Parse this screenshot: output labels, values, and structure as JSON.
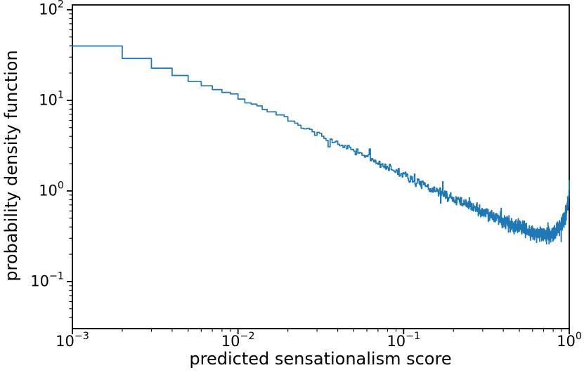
{
  "figure": {
    "background": "#ffffff",
    "text_color": "#000000"
  },
  "chart_data": {
    "type": "line",
    "subtype": "step-histogram-pdf-loglog",
    "title": "",
    "xlabel": "predicted sensationalism score",
    "ylabel": "probability density function",
    "xscale": "log",
    "yscale": "log",
    "xlim": [
      0.001,
      1.0
    ],
    "ylim": [
      0.0302,
      113
    ],
    "grid": false,
    "legend_position": "none",
    "line_color": "#1f77b4",
    "spine_color": "#000000",
    "bin_width": 0.001,
    "x_ticks": [
      {
        "value": 0.001,
        "base": "10",
        "exp": "−3"
      },
      {
        "value": 0.01,
        "base": "10",
        "exp": "−2"
      },
      {
        "value": 0.1,
        "base": "10",
        "exp": "−1"
      },
      {
        "value": 1.0,
        "base": "10",
        "exp": "0"
      }
    ],
    "y_ticks": [
      {
        "value": 100,
        "base": "10",
        "exp": "2"
      },
      {
        "value": 10,
        "base": "10",
        "exp": "1"
      },
      {
        "value": 1,
        "base": "10",
        "exp": "0"
      },
      {
        "value": 0.1,
        "base": "10",
        "exp": "−1"
      }
    ],
    "curve_anchors": [
      [
        0.001,
        40.0
      ],
      [
        0.002,
        29.0
      ],
      [
        0.003,
        22.6
      ],
      [
        0.004,
        18.8
      ],
      [
        0.005,
        16.2
      ],
      [
        0.006,
        14.5
      ],
      [
        0.007,
        13.2
      ],
      [
        0.008,
        12.2
      ],
      [
        0.009,
        11.35
      ],
      [
        0.01,
        10.55
      ],
      [
        0.012,
        9.2
      ],
      [
        0.015,
        7.6
      ],
      [
        0.02,
        5.95
      ],
      [
        0.03,
        4.2
      ],
      [
        0.05,
        2.75
      ],
      [
        0.07,
        2.05
      ],
      [
        0.1,
        1.5
      ],
      [
        0.13,
        1.16
      ],
      [
        0.17,
        0.93
      ],
      [
        0.22,
        0.76
      ],
      [
        0.28,
        0.63
      ],
      [
        0.35,
        0.53
      ],
      [
        0.45,
        0.43
      ],
      [
        0.55,
        0.37
      ],
      [
        0.65,
        0.335
      ],
      [
        0.75,
        0.33
      ],
      [
        0.82,
        0.35
      ],
      [
        0.88,
        0.4
      ],
      [
        0.93,
        0.48
      ],
      [
        0.96,
        0.58
      ],
      [
        0.98,
        0.72
      ],
      [
        0.99,
        0.85
      ],
      [
        0.995,
        1.0
      ],
      [
        0.999,
        1.25
      ],
      [
        1.0,
        1.3
      ]
    ],
    "noise": {
      "seed": 7,
      "sigma_quiet": 0.0025,
      "quiet_below_x": 0.008,
      "sigma_scale": 0.0104,
      "sigma_exp": 0.35,
      "sigma_cap": 0.04,
      "spike_prob": 0.03,
      "spike_mult": 2.2
    }
  }
}
